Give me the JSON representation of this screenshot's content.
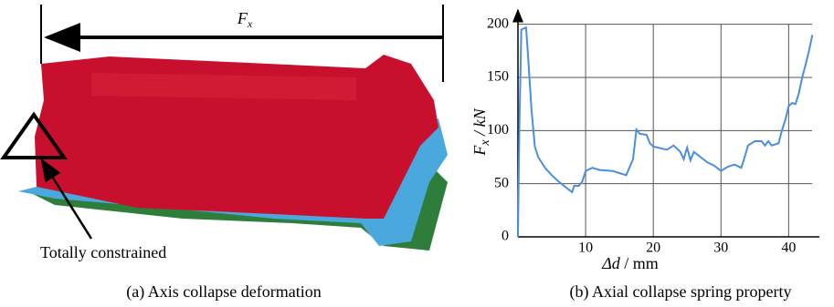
{
  "panel_a": {
    "force_label": {
      "symbol": "F",
      "subscript": "x"
    },
    "annotation": "Totally constrained",
    "caption": "(a) Axis collapse deformation"
  },
  "chart_data": {
    "type": "line",
    "caption": "(b) Axial collapse spring property",
    "y_label": {
      "symbol": "F",
      "subscript": "x",
      "unit": " / kN"
    },
    "x_label": {
      "symbol": "Δd",
      "unit": " / mm"
    },
    "x": [
      0,
      0.2,
      0.5,
      1.2,
      1.5,
      2,
      2.5,
      3,
      4,
      5,
      6,
      7,
      8,
      8.3,
      9,
      9.5,
      10,
      11,
      12,
      14,
      15,
      16,
      17,
      17.5,
      18,
      19,
      19.5,
      20,
      22,
      23,
      24,
      24.5,
      25,
      25.5,
      26,
      27,
      28,
      29,
      30,
      31,
      32,
      33,
      33.5,
      34,
      35,
      36,
      36.5,
      37,
      37.5,
      38.5,
      39,
      39.5,
      40,
      40.5,
      41,
      41.5,
      42,
      42.5,
      43,
      43.5
    ],
    "values": [
      0,
      100,
      195,
      197,
      170,
      120,
      85,
      75,
      65,
      58,
      52,
      47,
      42,
      48,
      48,
      52,
      62,
      65,
      63,
      62,
      60,
      58,
      73,
      101,
      97,
      96,
      88,
      85,
      82,
      86,
      80,
      73,
      84,
      72,
      80,
      75,
      70,
      67,
      62,
      66,
      68,
      65,
      75,
      86,
      90,
      90,
      86,
      90,
      86,
      88,
      100,
      110,
      123,
      126,
      125,
      135,
      150,
      162,
      175,
      190
    ],
    "color": "#4a8ee0",
    "xlim": [
      0,
      44
    ],
    "ylim": [
      0,
      210
    ],
    "xticks": [
      10,
      20,
      30,
      40
    ],
    "yticks": [
      0,
      50,
      100,
      150,
      200
    ],
    "grid": true
  }
}
